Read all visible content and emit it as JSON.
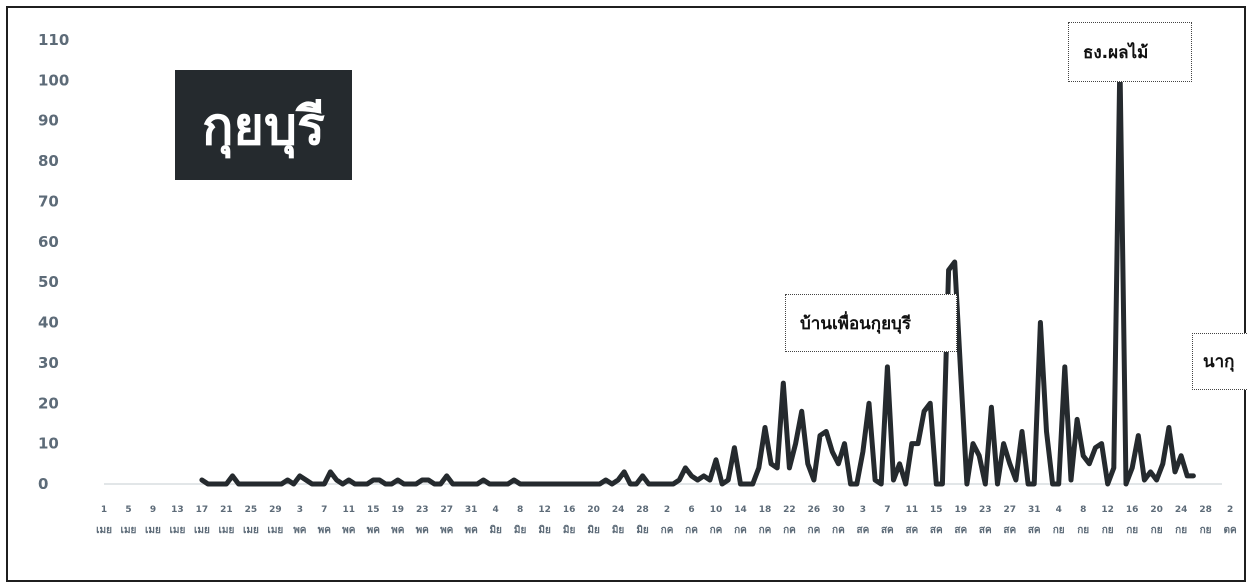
{
  "title": "กุยบุรี",
  "annotations": {
    "a1": "บ้านเพื่อนกุยบุรี",
    "a2": "ธง.ผลไม้",
    "a3": "นากุ"
  },
  "chart_data": {
    "type": "line",
    "title": "กุยบุรี",
    "ylim": [
      0,
      110
    ],
    "yticks": [
      "0",
      "10",
      "20",
      "30",
      "40",
      "50",
      "60",
      "70",
      "80",
      "90",
      "100",
      "110"
    ],
    "grid": false,
    "series_color": "#252a2e",
    "tick_days": [
      "1",
      "5",
      "9",
      "13",
      "17",
      "21",
      "25",
      "29",
      "3",
      "7",
      "11",
      "15",
      "19",
      "23",
      "27",
      "31",
      "4",
      "8",
      "12",
      "16",
      "20",
      "24",
      "28",
      "2",
      "6",
      "10",
      "14",
      "18",
      "22",
      "26",
      "30",
      "3",
      "7",
      "11",
      "15",
      "19",
      "23",
      "27",
      "31",
      "4",
      "8",
      "12",
      "16",
      "20",
      "24",
      "28",
      "2"
    ],
    "tick_months": [
      "เมย",
      "เมย",
      "เมย",
      "เมย",
      "เมย",
      "เมย",
      "เมย",
      "เมย",
      "พค",
      "พค",
      "พค",
      "พค",
      "พค",
      "พค",
      "พค",
      "พค",
      "มิย",
      "มิย",
      "มิย",
      "มิย",
      "มิย",
      "มิย",
      "มิย",
      "กค",
      "กค",
      "กค",
      "กค",
      "กค",
      "กค",
      "กค",
      "กค",
      "สค",
      "สค",
      "สค",
      "สค",
      "สค",
      "สค",
      "สค",
      "สค",
      "กย",
      "กย",
      "กย",
      "กย",
      "กย",
      "กย",
      "กย",
      "ตค"
    ],
    "x_start": "1 เมย",
    "values": [
      0,
      0,
      0,
      0,
      0,
      0,
      0,
      0,
      0,
      0,
      0,
      0,
      0,
      0,
      0,
      0,
      1,
      0,
      0,
      0,
      0,
      2,
      0,
      0,
      0,
      0,
      0,
      0,
      0,
      0,
      1,
      0,
      2,
      1,
      0,
      0,
      0,
      3,
      1,
      0,
      1,
      0,
      0,
      0,
      1,
      1,
      0,
      0,
      1,
      0,
      0,
      0,
      1,
      1,
      0,
      0,
      2,
      0,
      0,
      0,
      0,
      0,
      1,
      0,
      0,
      0,
      0,
      1,
      0,
      0,
      0,
      0,
      0,
      0,
      0,
      0,
      0,
      0,
      0,
      0,
      0,
      0,
      1,
      0,
      1,
      3,
      0,
      0,
      2,
      0,
      0,
      0,
      0,
      0,
      1,
      4,
      2,
      1,
      2,
      1,
      6,
      0,
      1,
      9,
      0,
      0,
      0,
      4,
      14,
      5,
      4,
      25,
      4,
      10,
      18,
      5,
      1,
      12,
      13,
      8,
      5,
      10,
      0,
      0,
      8,
      20,
      1,
      0,
      29,
      1,
      5,
      0,
      10,
      10,
      18,
      20,
      0,
      0,
      53,
      55,
      27,
      0,
      10,
      7,
      0,
      19,
      0,
      10,
      5,
      1,
      13,
      0,
      0,
      40,
      13,
      0,
      0,
      29,
      1,
      16,
      7,
      5,
      9,
      10,
      0,
      4,
      105,
      0,
      4,
      12,
      1,
      3,
      1,
      5,
      14,
      3,
      7,
      2,
      2
    ]
  }
}
